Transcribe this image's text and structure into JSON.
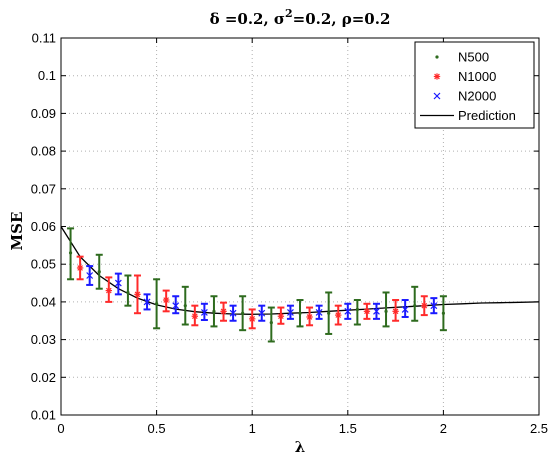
{
  "chart_data": {
    "type": "scatter",
    "title_parts": {
      "t1": "δ =0.2,  σ",
      "t2": "2",
      "t3": "=0.2,  ρ=0.2"
    },
    "xlabel": "λ",
    "ylabel": "MSE",
    "xlim": [
      0,
      2.5
    ],
    "ylim": [
      0.01,
      0.11
    ],
    "x_ticks": [
      0,
      0.5,
      1,
      1.5,
      2,
      2.5
    ],
    "x_tick_labels": [
      "0",
      "0.5",
      "1",
      "1.5",
      "2",
      "2.5"
    ],
    "y_ticks": [
      0.01,
      0.02,
      0.03,
      0.04,
      0.05,
      0.06,
      0.07,
      0.08,
      0.09,
      0.1,
      0.11
    ],
    "y_tick_labels": [
      "0.01",
      "0.02",
      "0.03",
      "0.04",
      "0.05",
      "0.06",
      "0.07",
      "0.08",
      "0.09",
      "0.1",
      "0.11"
    ],
    "grid": true,
    "legend_position": "top-right",
    "series": [
      {
        "name": "N500",
        "marker": "dot",
        "color": "#2e6b1e",
        "points": [
          {
            "x": 0.05,
            "y": 0.053,
            "lo": 0.046,
            "hi": 0.0595
          },
          {
            "x": 0.2,
            "y": 0.048,
            "lo": 0.0435,
            "hi": 0.0525
          },
          {
            "x": 0.35,
            "y": 0.0425,
            "lo": 0.039,
            "hi": 0.047
          },
          {
            "x": 0.5,
            "y": 0.0395,
            "lo": 0.033,
            "hi": 0.046
          },
          {
            "x": 0.65,
            "y": 0.039,
            "lo": 0.034,
            "hi": 0.044
          },
          {
            "x": 0.8,
            "y": 0.0375,
            "lo": 0.0335,
            "hi": 0.0415
          },
          {
            "x": 0.95,
            "y": 0.037,
            "lo": 0.0325,
            "hi": 0.0415
          },
          {
            "x": 1.1,
            "y": 0.0345,
            "lo": 0.0295,
            "hi": 0.0385
          },
          {
            "x": 1.25,
            "y": 0.037,
            "lo": 0.0335,
            "hi": 0.0405
          },
          {
            "x": 1.4,
            "y": 0.037,
            "lo": 0.0315,
            "hi": 0.0425
          },
          {
            "x": 1.55,
            "y": 0.038,
            "lo": 0.034,
            "hi": 0.0405
          },
          {
            "x": 1.7,
            "y": 0.0375,
            "lo": 0.0335,
            "hi": 0.0425
          },
          {
            "x": 1.85,
            "y": 0.039,
            "lo": 0.035,
            "hi": 0.044
          },
          {
            "x": 2.0,
            "y": 0.037,
            "lo": 0.0325,
            "hi": 0.0415
          }
        ]
      },
      {
        "name": "N1000",
        "marker": "star",
        "color": "#ff2a2a",
        "points": [
          {
            "x": 0.1,
            "y": 0.049,
            "lo": 0.046,
            "hi": 0.052
          },
          {
            "x": 0.25,
            "y": 0.043,
            "lo": 0.04,
            "hi": 0.0465
          },
          {
            "x": 0.4,
            "y": 0.042,
            "lo": 0.037,
            "hi": 0.047
          },
          {
            "x": 0.55,
            "y": 0.0405,
            "lo": 0.0375,
            "hi": 0.043
          },
          {
            "x": 0.7,
            "y": 0.0362,
            "lo": 0.0338,
            "hi": 0.039
          },
          {
            "x": 0.85,
            "y": 0.0375,
            "lo": 0.035,
            "hi": 0.0398
          },
          {
            "x": 1.0,
            "y": 0.0355,
            "lo": 0.033,
            "hi": 0.038
          },
          {
            "x": 1.15,
            "y": 0.0362,
            "lo": 0.0342,
            "hi": 0.0385
          },
          {
            "x": 1.3,
            "y": 0.036,
            "lo": 0.0338,
            "hi": 0.0385
          },
          {
            "x": 1.45,
            "y": 0.0365,
            "lo": 0.034,
            "hi": 0.039
          },
          {
            "x": 1.6,
            "y": 0.0375,
            "lo": 0.0355,
            "hi": 0.0395
          },
          {
            "x": 1.75,
            "y": 0.0375,
            "lo": 0.035,
            "hi": 0.0405
          },
          {
            "x": 1.9,
            "y": 0.039,
            "lo": 0.0365,
            "hi": 0.0415
          }
        ]
      },
      {
        "name": "N2000",
        "marker": "x",
        "color": "#1a1aff",
        "points": [
          {
            "x": 0.15,
            "y": 0.047,
            "lo": 0.0445,
            "hi": 0.0495
          },
          {
            "x": 0.3,
            "y": 0.045,
            "lo": 0.042,
            "hi": 0.0475
          },
          {
            "x": 0.45,
            "y": 0.04,
            "lo": 0.038,
            "hi": 0.042
          },
          {
            "x": 0.6,
            "y": 0.039,
            "lo": 0.037,
            "hi": 0.0415
          },
          {
            "x": 0.75,
            "y": 0.0372,
            "lo": 0.0352,
            "hi": 0.0395
          },
          {
            "x": 0.9,
            "y": 0.037,
            "lo": 0.035,
            "hi": 0.039
          },
          {
            "x": 1.05,
            "y": 0.037,
            "lo": 0.035,
            "hi": 0.039
          },
          {
            "x": 1.2,
            "y": 0.0372,
            "lo": 0.0355,
            "hi": 0.039
          },
          {
            "x": 1.35,
            "y": 0.0372,
            "lo": 0.0355,
            "hi": 0.039
          },
          {
            "x": 1.5,
            "y": 0.0375,
            "lo": 0.0355,
            "hi": 0.0395
          },
          {
            "x": 1.65,
            "y": 0.0375,
            "lo": 0.0355,
            "hi": 0.0395
          },
          {
            "x": 1.8,
            "y": 0.038,
            "lo": 0.036,
            "hi": 0.0405
          },
          {
            "x": 1.95,
            "y": 0.039,
            "lo": 0.037,
            "hi": 0.041
          }
        ]
      }
    ],
    "prediction": {
      "name": "Prediction",
      "color": "#000000",
      "x": [
        0,
        0.1,
        0.2,
        0.3,
        0.4,
        0.5,
        0.6,
        0.7,
        0.8,
        0.9,
        1.0,
        1.1,
        1.2,
        1.3,
        1.4,
        1.5,
        1.6,
        1.7,
        1.8,
        1.9,
        2.0,
        2.1,
        2.2,
        2.3,
        2.4,
        2.5
      ],
      "y": [
        0.06,
        0.052,
        0.047,
        0.0435,
        0.041,
        0.0392,
        0.0381,
        0.0374,
        0.037,
        0.0368,
        0.0367,
        0.0368,
        0.037,
        0.0372,
        0.0375,
        0.0378,
        0.0381,
        0.0384,
        0.0387,
        0.039,
        0.0393,
        0.0395,
        0.0397,
        0.0398,
        0.0399,
        0.04
      ]
    }
  }
}
